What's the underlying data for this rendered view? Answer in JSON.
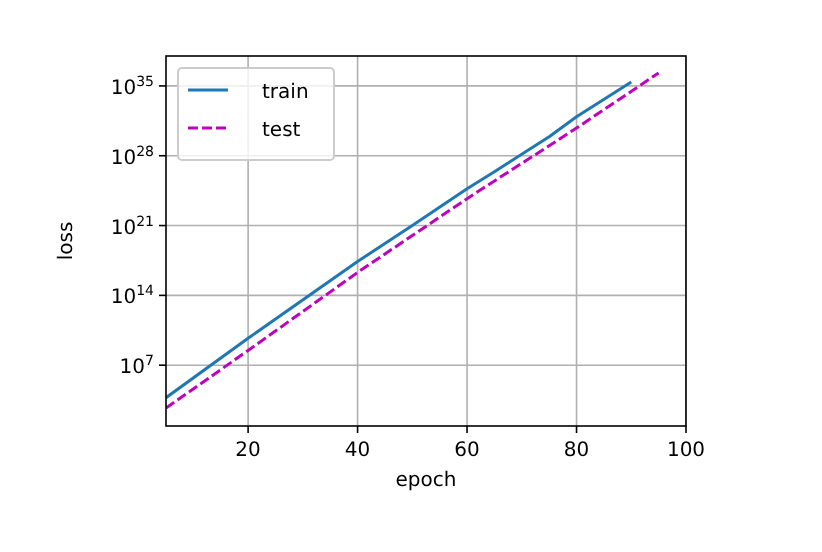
{
  "chart_data": {
    "type": "line",
    "xlabel": "epoch",
    "ylabel": "loss",
    "log": "y",
    "grid": true,
    "legend": "top left",
    "xlim": [
      5,
      100
    ],
    "xticks": [
      20,
      40,
      60,
      80,
      100
    ],
    "ylim": [
      8,
      1e+38
    ],
    "yticks": [
      {
        "value": 10000000.0,
        "label": "10$^{7}$"
      },
      {
        "value": 100000000000000.0,
        "label": "10$^{14}$"
      },
      {
        "value": 1e+21,
        "label": "10$^{21}$"
      },
      {
        "value": 1e+28,
        "label": "10$^{28}$"
      },
      {
        "value": 1e+35,
        "label": "10$^{35}$"
      }
    ],
    "series": [
      {
        "name": "train",
        "color": "#1f77b4",
        "line_style": "solid",
        "x": [
          5,
          20,
          40,
          50,
          60,
          65,
          75,
          80,
          90
        ],
        "values": [
          5500.0,
          5000000000.0,
          2.5e+17,
          1e+21,
          5e+24,
          2.5e+26,
          8e+29,
          8e+31,
          2.5e+35
        ]
      },
      {
        "name": "test",
        "color": "#bf00bf",
        "line_style": "dashed",
        "x": [
          5,
          20,
          40,
          60,
          65,
          75,
          80,
          95
        ],
        "values": [
          500.0,
          300000000.0,
          2e+16,
          5e+23,
          3e+25,
          1e+29,
          6e+30,
          2e+36
        ]
      }
    ]
  }
}
